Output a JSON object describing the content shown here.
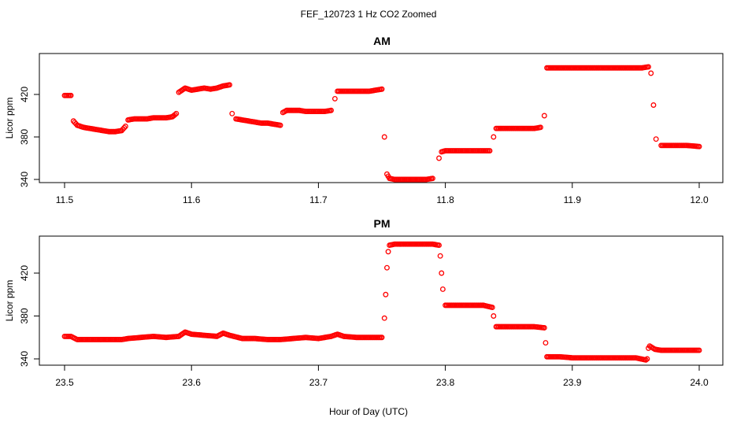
{
  "figure": {
    "title": "FEF_120723  1 Hz CO2 Zoomed",
    "xlabel": "Hour of Day (UTC)"
  },
  "colors": {
    "points": "#ff0000",
    "axes": "#000000",
    "background": "#ffffff"
  },
  "chart_data": [
    {
      "type": "scatter",
      "title": "AM",
      "xlabel": "",
      "ylabel": "Licor ppm",
      "xlim": [
        11.5,
        12.0
      ],
      "ylim": [
        335,
        455
      ],
      "xticks": [
        "11.5",
        "11.6",
        "11.7",
        "11.8",
        "11.9",
        "12.0"
      ],
      "yticks": [
        "340",
        "380",
        "420"
      ],
      "series": [
        {
          "x": [
            11.5,
            11.505,
            11.507,
            11.51,
            11.515,
            11.52,
            11.525,
            11.53,
            11.535,
            11.54,
            11.545,
            11.548,
            11.55,
            11.555,
            11.56,
            11.565,
            11.57,
            11.575,
            11.58,
            11.585,
            11.588,
            11.59,
            11.595,
            11.6,
            11.605,
            11.61,
            11.615,
            11.62,
            11.625,
            11.63,
            11.632,
            11.635,
            11.64,
            11.645,
            11.65,
            11.655,
            11.66,
            11.665,
            11.67,
            11.672,
            11.675,
            11.68,
            11.685,
            11.69,
            11.695,
            11.7,
            11.705,
            11.71,
            11.713,
            11.715,
            11.72,
            11.725,
            11.73,
            11.735,
            11.74,
            11.745,
            11.75,
            11.752,
            11.754,
            11.756,
            11.76,
            11.765,
            11.77,
            11.775,
            11.78,
            11.785,
            11.79,
            11.795,
            11.797,
            11.8,
            11.805,
            11.81,
            11.815,
            11.82,
            11.825,
            11.83,
            11.835,
            11.838,
            11.84,
            11.845,
            11.85,
            11.855,
            11.86,
            11.865,
            11.87,
            11.875,
            11.878,
            11.88,
            11.885,
            11.89,
            11.9,
            11.91,
            11.92,
            11.93,
            11.94,
            11.95,
            11.955,
            11.96,
            11.962,
            11.964,
            11.966,
            11.97,
            11.98,
            11.99,
            12.0
          ],
          "y": [
            419,
            419,
            395,
            391,
            389,
            388,
            387,
            386,
            385,
            385,
            386,
            390,
            396,
            397,
            397,
            397,
            398,
            398,
            398,
            399,
            402,
            422,
            426,
            424,
            425,
            426,
            425,
            426,
            428,
            429,
            402,
            397,
            396,
            395,
            394,
            393,
            393,
            392,
            391,
            403,
            405,
            405,
            405,
            404,
            404,
            404,
            404,
            405,
            416,
            423,
            423,
            423,
            423,
            423,
            423,
            424,
            425,
            380,
            345,
            341,
            340,
            340,
            340,
            340,
            340,
            340,
            341,
            360,
            366,
            367,
            367,
            367,
            367,
            367,
            367,
            367,
            367,
            380,
            388,
            388,
            388,
            388,
            388,
            388,
            388,
            389,
            400,
            445,
            445,
            445,
            445,
            445,
            445,
            445,
            445,
            445,
            445,
            446,
            440,
            410,
            378,
            372,
            372,
            372,
            371
          ]
        }
      ]
    },
    {
      "type": "scatter",
      "title": "PM",
      "xlabel": "Hour of Day (UTC)",
      "ylabel": "Licor ppm",
      "xlim": [
        23.5,
        24.0
      ],
      "ylim": [
        335,
        455
      ],
      "xticks": [
        "23.5",
        "23.6",
        "23.7",
        "23.8",
        "23.9",
        "24.0"
      ],
      "yticks": [
        "340",
        "380",
        "420"
      ],
      "series": [
        {
          "x": [
            23.5,
            23.505,
            23.51,
            23.52,
            23.53,
            23.54,
            23.545,
            23.55,
            23.56,
            23.57,
            23.58,
            23.59,
            23.595,
            23.6,
            23.61,
            23.62,
            23.625,
            23.63,
            23.64,
            23.65,
            23.66,
            23.67,
            23.68,
            23.69,
            23.7,
            23.71,
            23.715,
            23.72,
            23.73,
            23.74,
            23.75,
            23.752,
            23.753,
            23.754,
            23.755,
            23.756,
            23.76,
            23.77,
            23.78,
            23.79,
            23.795,
            23.796,
            23.797,
            23.798,
            23.8,
            23.81,
            23.82,
            23.83,
            23.837,
            23.838,
            23.84,
            23.85,
            23.86,
            23.87,
            23.878,
            23.879,
            23.88,
            23.89,
            23.9,
            23.91,
            23.92,
            23.93,
            23.94,
            23.95,
            23.958,
            23.959,
            23.96,
            23.961,
            23.965,
            23.97,
            23.98,
            23.99,
            24.0
          ],
          "y": [
            361,
            361,
            358,
            358,
            358,
            358,
            358,
            359,
            360,
            361,
            360,
            361,
            365,
            363,
            362,
            361,
            364,
            362,
            359,
            359,
            358,
            358,
            359,
            360,
            359,
            361,
            363,
            361,
            360,
            360,
            360,
            378,
            400,
            425,
            440,
            446,
            447,
            447,
            447,
            447,
            446,
            436,
            420,
            405,
            390,
            390,
            390,
            390,
            388,
            380,
            370,
            370,
            370,
            370,
            369,
            355,
            342,
            342,
            341,
            341,
            341,
            341,
            341,
            341,
            339,
            340,
            350,
            352,
            349,
            348,
            348,
            348,
            348
          ]
        }
      ]
    }
  ]
}
